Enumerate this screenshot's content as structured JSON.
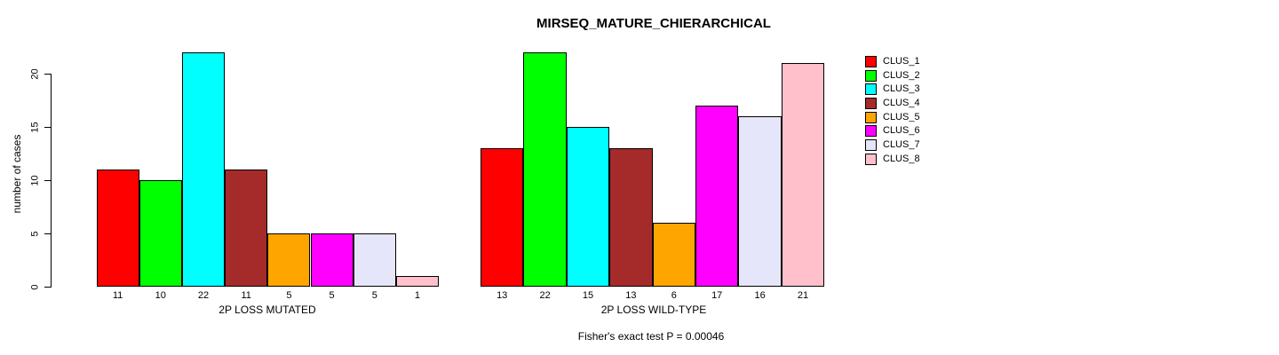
{
  "title": "MIRSEQ_MATURE_CHIERARCHICAL",
  "footnote": "Fisher's exact test P = 0.00046",
  "y_axis": {
    "label": "number of cases",
    "ticks": [
      0,
      5,
      10,
      15,
      20
    ]
  },
  "legend": {
    "position": "right",
    "entries": [
      {
        "label": "CLUS_1",
        "color": "#FF0000"
      },
      {
        "label": "CLUS_2",
        "color": "#00FF00"
      },
      {
        "label": "CLUS_3",
        "color": "#00FFFF"
      },
      {
        "label": "CLUS_4",
        "color": "#A52A2A"
      },
      {
        "label": "CLUS_5",
        "color": "#FFA500"
      },
      {
        "label": "CLUS_6",
        "color": "#FF00FF"
      },
      {
        "label": "CLUS_7",
        "color": "#E6E6FA"
      },
      {
        "label": "CLUS_8",
        "color": "#FFC0CB"
      }
    ]
  },
  "chart_data": [
    {
      "type": "bar",
      "xlabel": "2P LOSS MUTATED",
      "ylabel": "number of cases",
      "categories": [
        "CLUS_1",
        "CLUS_2",
        "CLUS_3",
        "CLUS_4",
        "CLUS_5",
        "CLUS_6",
        "CLUS_7",
        "CLUS_8"
      ],
      "values": [
        11,
        10,
        22,
        11,
        5,
        5,
        5,
        1
      ],
      "bar_labels": [
        "11",
        "10",
        "22",
        "11",
        "5",
        "5",
        "5",
        "1"
      ],
      "colors": [
        "#FF0000",
        "#00FF00",
        "#00FFFF",
        "#A52A2A",
        "#FFA500",
        "#FF00FF",
        "#E6E6FA",
        "#FFC0CB"
      ],
      "ylim": [
        0,
        22
      ],
      "yticks": [
        0,
        5,
        10,
        15,
        20
      ],
      "grid": false,
      "legend_position": "right"
    },
    {
      "type": "bar",
      "xlabel": "2P LOSS WILD-TYPE",
      "ylabel": "number of cases",
      "categories": [
        "CLUS_1",
        "CLUS_2",
        "CLUS_3",
        "CLUS_4",
        "CLUS_5",
        "CLUS_6",
        "CLUS_7",
        "CLUS_8"
      ],
      "values": [
        13,
        22,
        15,
        13,
        6,
        17,
        16,
        21
      ],
      "bar_labels": [
        "13",
        "22",
        "15",
        "13",
        "6",
        "17",
        "16",
        "21"
      ],
      "colors": [
        "#FF0000",
        "#00FF00",
        "#00FFFF",
        "#A52A2A",
        "#FFA500",
        "#FF00FF",
        "#E6E6FA",
        "#FFC0CB"
      ],
      "ylim": [
        0,
        22
      ],
      "yticks": [
        0,
        5,
        10,
        15,
        20
      ],
      "grid": false,
      "legend_position": "right"
    }
  ]
}
